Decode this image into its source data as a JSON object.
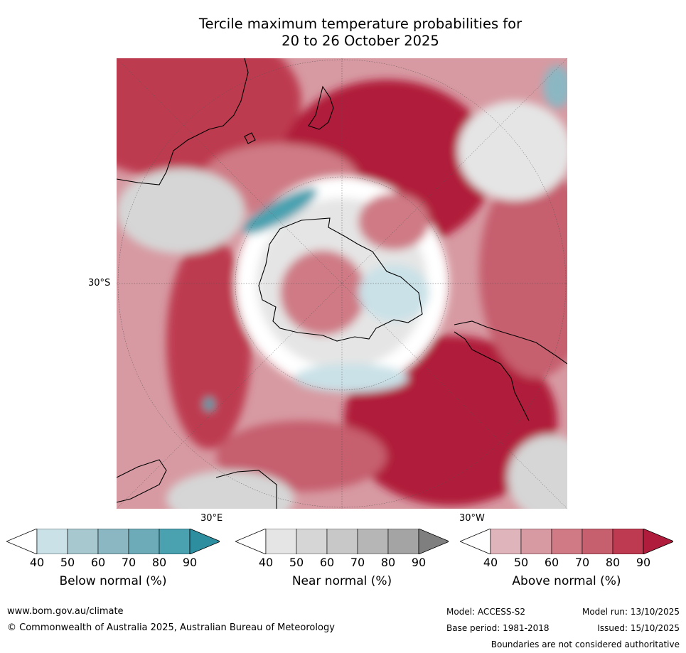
{
  "title_line1": "Tercile maximum temperature probabilities for",
  "title_line2": "20 to 26 October 2025",
  "map": {
    "projection": "south-polar-stereographic",
    "lat_label": "30°S",
    "lon_labels": {
      "east": "30°E",
      "west": "30°W"
    }
  },
  "colorbars": [
    {
      "label": "Below normal (%)",
      "ticks": [
        "40",
        "50",
        "60",
        "70",
        "80",
        "90"
      ],
      "colors": [
        "#ffffff",
        "#c9e1e7",
        "#a7c8cf",
        "#8bb7c3",
        "#6eabb9",
        "#4aa1b0",
        "#2d8ea0"
      ]
    },
    {
      "label": "Near normal (%)",
      "ticks": [
        "40",
        "50",
        "60",
        "70",
        "80",
        "90"
      ],
      "colors": [
        "#ffffff",
        "#e5e5e5",
        "#d6d6d6",
        "#c8c8c8",
        "#b6b6b6",
        "#a4a4a4",
        "#7f7f7f"
      ]
    },
    {
      "label": "Above normal (%)",
      "ticks": [
        "40",
        "50",
        "60",
        "70",
        "80",
        "90"
      ],
      "colors": [
        "#ffffff",
        "#dfb4ba",
        "#d79aa2",
        "#cf7a85",
        "#c65f6e",
        "#bd3a50",
        "#b01c3b"
      ]
    }
  ],
  "footer": {
    "url": "www.bom.gov.au/climate",
    "copyright": "© Commonwealth of Australia 2025, Australian Bureau of Meteorology",
    "model": "Model: ACCESS-S2",
    "base_period": "Base period: 1981-2018",
    "model_run": "Model run: 13/10/2025",
    "issued": "Issued: 15/10/2025",
    "disclaimer": "Boundaries are not considered authoritative"
  }
}
